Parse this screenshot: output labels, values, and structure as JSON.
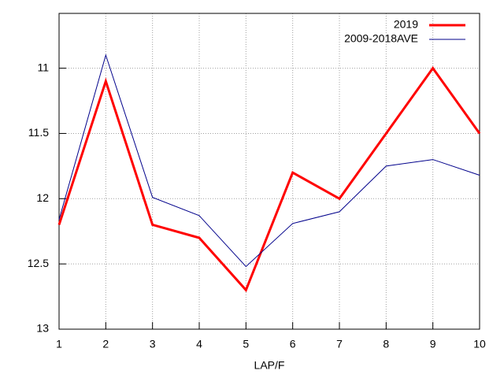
{
  "chart_data": {
    "type": "line",
    "xlabel": "LAP/F",
    "x": [
      1,
      2,
      3,
      4,
      5,
      6,
      7,
      8,
      9,
      10
    ],
    "series": [
      {
        "name": "2019",
        "color": "#ff0000",
        "values": [
          12.2,
          11.1,
          12.2,
          12.3,
          12.7,
          11.8,
          12.0,
          11.5,
          11.0,
          11.5
        ]
      },
      {
        "name": "2009-2018AVE",
        "color": "#00008b",
        "values": [
          12.16,
          10.9,
          11.99,
          12.13,
          12.52,
          12.19,
          12.1,
          11.75,
          11.7,
          11.82
        ]
      }
    ],
    "xlim": [
      1,
      10
    ],
    "xticks": [
      1,
      2,
      3,
      4,
      5,
      6,
      7,
      8,
      9,
      10
    ],
    "ylim": [
      13,
      10.58
    ],
    "yticks": [
      11,
      11.5,
      12,
      12.5,
      13
    ],
    "grid": true,
    "legend": "top-right"
  }
}
